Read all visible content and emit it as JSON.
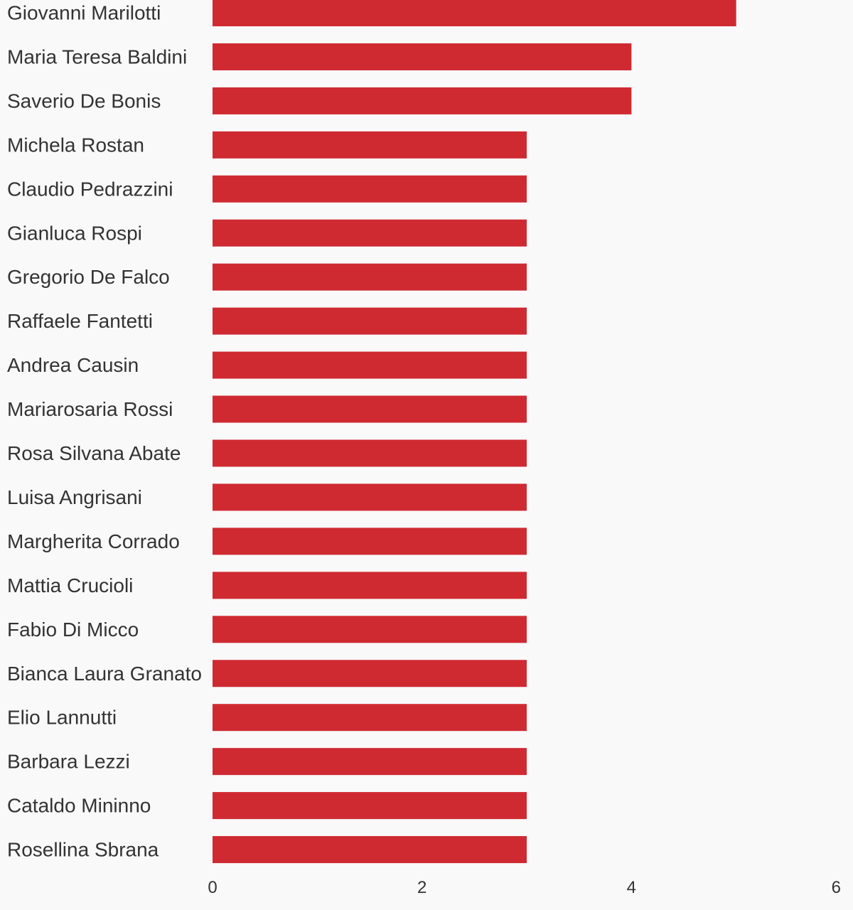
{
  "chart_data": {
    "type": "bar",
    "orientation": "horizontal",
    "title": "",
    "xlabel": "",
    "ylabel": "",
    "categories": [
      "Giovanni Marilotti",
      "Maria Teresa Baldini",
      "Saverio De Bonis",
      "Michela Rostan",
      "Claudio Pedrazzini",
      "Gianluca Rospi",
      "Gregorio De Falco",
      "Raffaele Fantetti",
      "Andrea Causin",
      "Mariarosaria Rossi",
      "Rosa Silvana Abate",
      "Luisa Angrisani",
      "Margherita Corrado",
      "Mattia Crucioli",
      "Fabio Di Micco",
      "Bianca Laura Granato",
      "Elio Lannutti",
      "Barbara Lezzi",
      "Cataldo Mininno",
      "Rosellina Sbrana"
    ],
    "values": [
      5,
      4,
      4,
      3,
      3,
      3,
      3,
      3,
      3,
      3,
      3,
      3,
      3,
      3,
      3,
      3,
      3,
      3,
      3,
      3
    ],
    "xlim": [
      0,
      6
    ],
    "x_ticks": [
      "0",
      "2",
      "4",
      "6"
    ],
    "grid": false,
    "bar_color": "#cf2a32"
  }
}
